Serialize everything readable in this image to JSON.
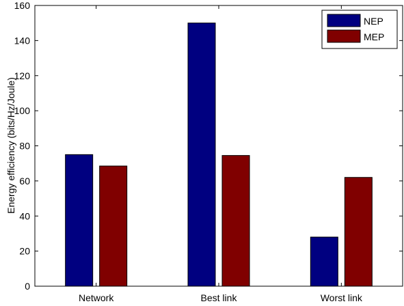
{
  "chart_data": {
    "type": "bar",
    "categories": [
      "Network",
      "Best link",
      "Worst link"
    ],
    "series": [
      {
        "name": "NEP",
        "values": [
          75,
          150,
          28
        ],
        "color": "#000080"
      },
      {
        "name": "MEP",
        "values": [
          68.5,
          74.5,
          62
        ],
        "color": "#800000"
      }
    ],
    "xlabel": "",
    "ylabel": "Energy efficiency (bits/Hz/Joule)",
    "ylim": [
      0,
      160
    ],
    "yticks": [
      0,
      20,
      40,
      60,
      80,
      100,
      120,
      140,
      160
    ],
    "grid": false,
    "legend_position": "top-right"
  }
}
